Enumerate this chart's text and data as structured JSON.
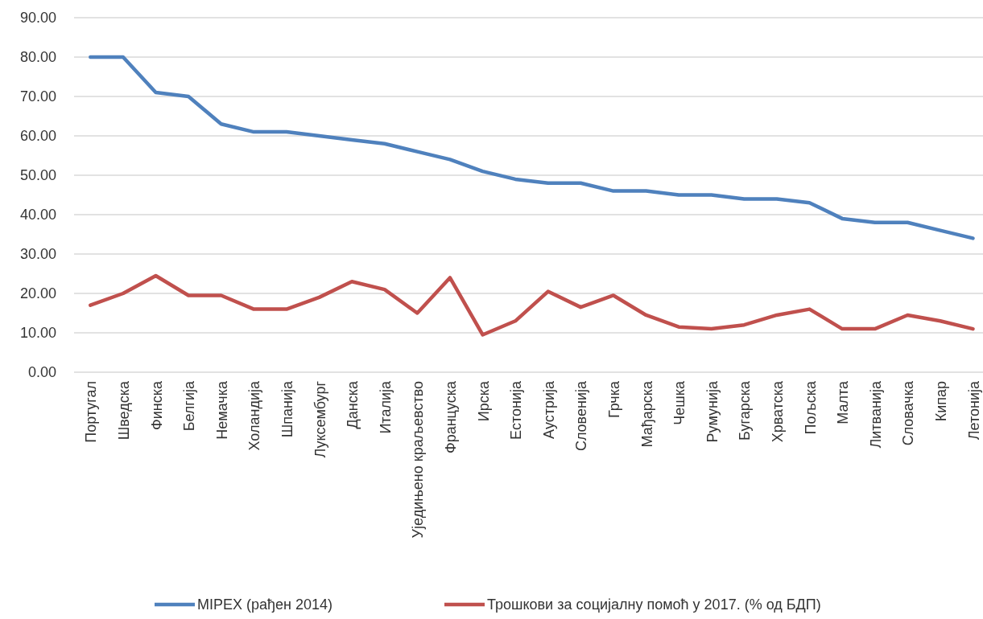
{
  "chart_data": {
    "type": "line",
    "categories": [
      "Португал",
      "Шведска",
      "Финска",
      "Белгија",
      "Немачка",
      "Холандија",
      "Шпанија",
      "Луксембург",
      "Данска",
      "Италија",
      "Уједињено краљевство",
      "Француска",
      "Ирска",
      "Естонија",
      "Аустрија",
      "Словенија",
      "Грчка",
      "Мађарска",
      "Чешка",
      "Румунија",
      "Бугарска",
      "Хрватска",
      "Пољска",
      "Малта",
      "Литванија",
      "Словачка",
      "Кипар",
      "Летонија"
    ],
    "series": [
      {
        "name": "MIPEX (рађен 2014)",
        "color": "#4f81bd",
        "values": [
          80,
          80,
          71,
          70,
          63,
          61,
          61,
          60,
          59,
          58,
          56,
          54,
          51,
          49,
          48,
          48,
          46,
          46,
          45,
          45,
          44,
          44,
          43,
          39,
          38,
          38,
          36,
          34
        ]
      },
      {
        "name": "Трошкови за социјалну помоћ у 2017. (% од БДП)",
        "color": "#c0504d",
        "values": [
          17,
          20,
          24.5,
          19.5,
          19.5,
          16,
          16,
          19,
          23,
          21,
          15,
          24,
          9.5,
          13,
          20.5,
          16.5,
          19.5,
          14.5,
          11.5,
          11,
          12,
          14.5,
          16,
          11,
          11,
          14.5,
          13,
          11
        ]
      }
    ],
    "ylim": [
      0,
      90
    ],
    "yticks": [
      {
        "value": 0,
        "label": "0.00"
      },
      {
        "value": 10,
        "label": "10.00"
      },
      {
        "value": 20,
        "label": "20.00"
      },
      {
        "value": 30,
        "label": "30.00"
      },
      {
        "value": 40,
        "label": "40.00"
      },
      {
        "value": 50,
        "label": "50.00"
      },
      {
        "value": 60,
        "label": "60.00"
      },
      {
        "value": 70,
        "label": "70.00"
      },
      {
        "value": 80,
        "label": "80.00"
      },
      {
        "value": 90,
        "label": "90.00"
      }
    ],
    "grid": "y",
    "legend": "bottom",
    "marker": "none",
    "line_style": "solid"
  }
}
